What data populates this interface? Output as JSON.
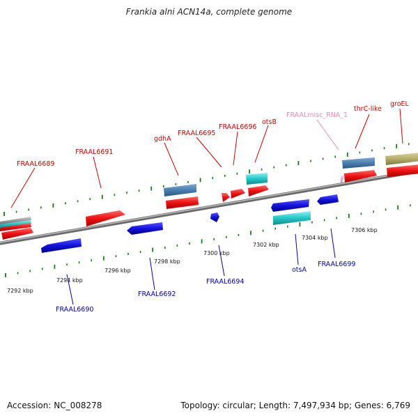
{
  "title": "Frankia alni ACN14a, complete genome",
  "footer": {
    "accession": "Accession: NC_008278",
    "topology_stats": "Topology: circular; Length: 7,497,934 bp; Genes: 6,769"
  },
  "colors": {
    "forward_gene": "#ee1111",
    "reverse_gene": "#1111dd",
    "cds_steelblue": "#4a7fb0",
    "cds_cyan": "#22c8c8",
    "cds_olive": "#b4ad6a",
    "misc_rna": "#f0a0c8",
    "tick": "#1a7a1a",
    "backbone": "#888888",
    "forward_label": "#cc0000",
    "reverse_label": "#0000aa",
    "misc_label": "#e888b8"
  },
  "scale_labels": [
    "7292 kbp",
    "7294 kbp",
    "7296 kbp",
    "7298 kbp",
    "7300 kbp",
    "7302 kbp",
    "7304 kbp",
    "7306 kbp"
  ],
  "forward_labels": [
    {
      "name": "FRAAL6689",
      "kind": "forward"
    },
    {
      "name": "FRAAL6691",
      "kind": "forward"
    },
    {
      "name": "gdhA",
      "kind": "forward"
    },
    {
      "name": "FRAAL6695",
      "kind": "forward"
    },
    {
      "name": "FRAAL6696",
      "kind": "forward"
    },
    {
      "name": "otsB",
      "kind": "forward"
    },
    {
      "name": "FRAALmisc_RNA_1",
      "kind": "misc"
    },
    {
      "name": "thrC-like",
      "kind": "forward"
    },
    {
      "name": "groEL",
      "kind": "forward"
    }
  ],
  "reverse_labels": [
    {
      "name": "FRAAL6690"
    },
    {
      "name": "FRAAL6692"
    },
    {
      "name": "FRAAL6694"
    },
    {
      "name": "otsA"
    },
    {
      "name": "FRAAL6699"
    }
  ]
}
